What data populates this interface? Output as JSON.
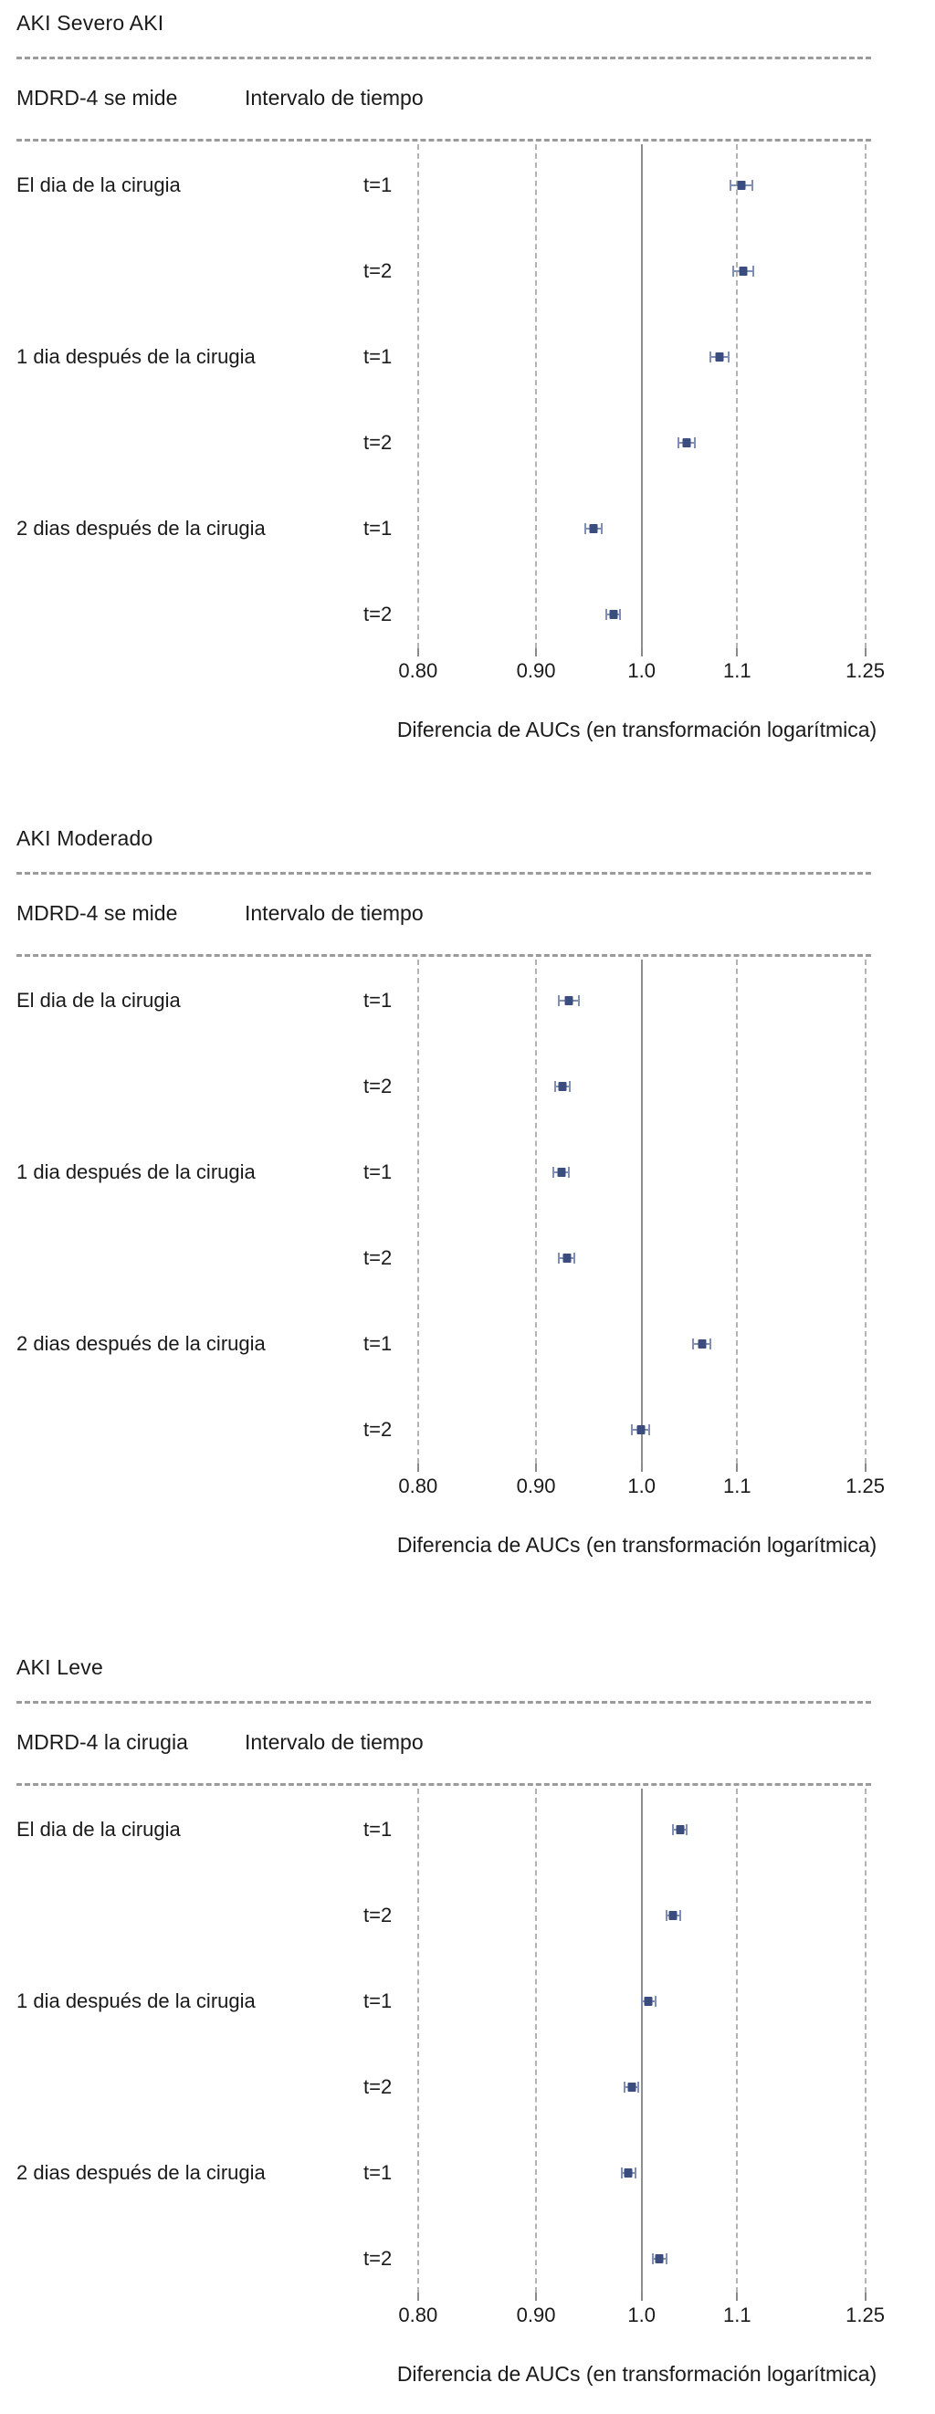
{
  "colors": {
    "marker": "#3b4c7e",
    "error_bar": "#8090b5",
    "dashed_gridline": "#b3b3b3",
    "reference_line": "#8f8f8f",
    "separator": "#9b9b9b",
    "text": "#1a1a1a",
    "background": "#ffffff"
  },
  "chart_data": [
    {
      "type": "scatter",
      "variant": "forest-plot",
      "title": "AKI Severo AKI",
      "col_headers": {
        "measure": "MDRD-4 se mide",
        "interval": "Intervalo de tiempo"
      },
      "xlabel": "Diferencia de AUCs (en transformación logarítmica)",
      "x_scale": "log",
      "xlim": [
        0.78,
        1.27
      ],
      "x_ticks": [
        0.8,
        0.9,
        1.0,
        1.1,
        1.25
      ],
      "x_tick_labels": [
        "0.80",
        "0.90",
        "1.0",
        "1.1",
        "1.25"
      ],
      "reference_line": 1.0,
      "dashed_gridlines": [
        0.8,
        0.9,
        1.1,
        1.25
      ],
      "grid": true,
      "legend": "none",
      "rows": [
        {
          "group": "El dia de la cirugia",
          "interval": "t=1",
          "estimate": 1.105,
          "ci_low": 1.093,
          "ci_high": 1.117
        },
        {
          "group": "",
          "interval": "t=2",
          "estimate": 1.107,
          "ci_low": 1.096,
          "ci_high": 1.118
        },
        {
          "group": "1 dia después de la cirugia",
          "interval": "t=1",
          "estimate": 1.081,
          "ci_low": 1.071,
          "ci_high": 1.091
        },
        {
          "group": "",
          "interval": "t=2",
          "estimate": 1.046,
          "ci_low": 1.037,
          "ci_high": 1.055
        },
        {
          "group": "2 dias después de la cirugia",
          "interval": "t=1",
          "estimate": 0.953,
          "ci_low": 0.945,
          "ci_high": 0.961
        },
        {
          "group": "",
          "interval": "t=2",
          "estimate": 0.972,
          "ci_low": 0.965,
          "ci_high": 0.979
        }
      ]
    },
    {
      "type": "scatter",
      "variant": "forest-plot",
      "title": "AKI Moderado",
      "col_headers": {
        "measure": "MDRD-4 se mide",
        "interval": "Intervalo de tiempo"
      },
      "xlabel": "Diferencia de AUCs (en transformación logarítmica)",
      "x_scale": "log",
      "xlim": [
        0.78,
        1.27
      ],
      "x_ticks": [
        0.8,
        0.9,
        1.0,
        1.1,
        1.25
      ],
      "x_tick_labels": [
        "0.80",
        "0.90",
        "1.0",
        "1.1",
        "1.25"
      ],
      "reference_line": 1.0,
      "dashed_gridlines": [
        0.8,
        0.9,
        1.1,
        1.25
      ],
      "grid": true,
      "legend": "none",
      "rows": [
        {
          "group": "El dia de la cirugia",
          "interval": "t=1",
          "estimate": 0.93,
          "ci_low": 0.921,
          "ci_high": 0.939
        },
        {
          "group": "",
          "interval": "t=2",
          "estimate": 0.924,
          "ci_low": 0.917,
          "ci_high": 0.931
        },
        {
          "group": "1 dia después de la cirugia",
          "interval": "t=1",
          "estimate": 0.923,
          "ci_low": 0.916,
          "ci_high": 0.93
        },
        {
          "group": "",
          "interval": "t=2",
          "estimate": 0.928,
          "ci_low": 0.921,
          "ci_high": 0.935
        },
        {
          "group": "2 dias después de la cirugia",
          "interval": "t=1",
          "estimate": 1.062,
          "ci_low": 1.053,
          "ci_high": 1.071
        },
        {
          "group": "",
          "interval": "t=2",
          "estimate": 0.999,
          "ci_low": 0.99,
          "ci_high": 1.008
        }
      ]
    },
    {
      "type": "scatter",
      "variant": "forest-plot",
      "title": "AKI Leve",
      "col_headers": {
        "measure": "MDRD-4 la cirugia",
        "interval": "Intervalo de tiempo"
      },
      "xlabel": "Diferencia de AUCs (en transformación logarítmica)",
      "x_scale": "log",
      "xlim": [
        0.78,
        1.27
      ],
      "x_ticks": [
        0.8,
        0.9,
        1.0,
        1.1,
        1.25
      ],
      "x_tick_labels": [
        "0.80",
        "0.90",
        "1.0",
        "1.1",
        "1.25"
      ],
      "reference_line": 1.0,
      "dashed_gridlines": [
        0.8,
        0.9,
        1.1,
        1.25
      ],
      "grid": true,
      "legend": "none",
      "rows": [
        {
          "group": "El dia de la cirugia",
          "interval": "t=1",
          "estimate": 1.039,
          "ci_low": 1.032,
          "ci_high": 1.046
        },
        {
          "group": "",
          "interval": "t=2",
          "estimate": 1.032,
          "ci_low": 1.025,
          "ci_high": 1.039
        },
        {
          "group": "1 dia después de la cirugia",
          "interval": "t=1",
          "estimate": 1.007,
          "ci_low": 1.0,
          "ci_high": 1.014
        },
        {
          "group": "",
          "interval": "t=2",
          "estimate": 0.99,
          "ci_low": 0.983,
          "ci_high": 0.997
        },
        {
          "group": "2 dias después de la cirugia",
          "interval": "t=1",
          "estimate": 0.987,
          "ci_low": 0.98,
          "ci_high": 0.994
        },
        {
          "group": "",
          "interval": "t=2",
          "estimate": 1.018,
          "ci_low": 1.011,
          "ci_high": 1.025
        }
      ]
    }
  ]
}
